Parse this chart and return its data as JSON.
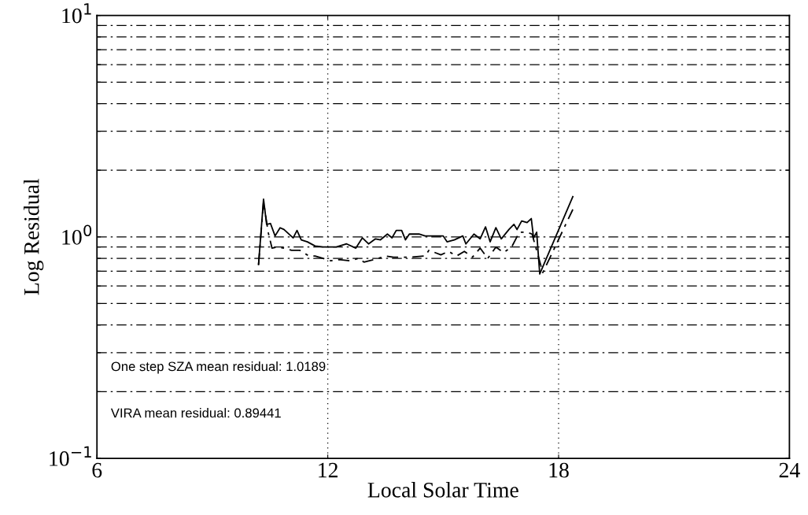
{
  "chart_data": {
    "type": "line",
    "xlabel": "Local Solar Time",
    "ylabel": "Log Residual",
    "log": "y",
    "xlim": [
      6,
      24
    ],
    "xticks": [
      6,
      12,
      18,
      24
    ],
    "ylim": [
      0.1,
      10
    ],
    "yticks": [
      {
        "value": 0.1,
        "label": "10$^{−1}$"
      },
      {
        "value": 0.2,
        "label": null
      },
      {
        "value": 0.3,
        "label": null
      },
      {
        "value": 0.4,
        "label": null
      },
      {
        "value": 0.5,
        "label": null
      },
      {
        "value": 0.6,
        "label": null
      },
      {
        "value": 0.7,
        "label": null
      },
      {
        "value": 0.8,
        "label": null
      },
      {
        "value": 0.9,
        "label": null
      },
      {
        "value": 1,
        "label": "10$^{0}$"
      },
      {
        "value": 2,
        "label": null
      },
      {
        "value": 3,
        "label": null
      },
      {
        "value": 4,
        "label": null
      },
      {
        "value": 5,
        "label": null
      },
      {
        "value": 6,
        "label": null
      },
      {
        "value": 7,
        "label": null
      },
      {
        "value": 8,
        "label": null
      },
      {
        "value": 9,
        "label": null
      },
      {
        "value": 10,
        "label": "10$^{1}$"
      }
    ],
    "grid": true,
    "marker": "none",
    "series": [
      {
        "color": "#000000",
        "line_style": "solid",
        "x": [
          10.2,
          10.33,
          10.41,
          10.51,
          10.63,
          10.76,
          10.86,
          11.1,
          11.2,
          11.31,
          11.47,
          11.67,
          11.88,
          12.22,
          12.49,
          12.73,
          12.9,
          13.06,
          13.24,
          13.37,
          13.55,
          13.67,
          13.78,
          13.92,
          14.02,
          14.12,
          14.37,
          14.53,
          15.0,
          15.1,
          15.29,
          15.51,
          15.59,
          15.8,
          15.96,
          16.1,
          16.22,
          16.37,
          16.51,
          16.71,
          16.84,
          16.92,
          17.04,
          17.18,
          17.29,
          17.35,
          17.43,
          17.51,
          18.37
        ],
        "values": [
          0.75,
          1.48,
          1.14,
          1.15,
          1.01,
          1.1,
          1.08,
          0.99,
          1.07,
          0.97,
          0.95,
          0.91,
          0.9,
          0.9,
          0.93,
          0.89,
          0.99,
          0.93,
          0.98,
          0.97,
          1.03,
          0.99,
          1.07,
          1.07,
          0.97,
          1.03,
          1.03,
          1.01,
          1.01,
          0.95,
          0.97,
          1.01,
          0.93,
          1.03,
          0.98,
          1.11,
          0.95,
          1.1,
          0.98,
          1.08,
          1.14,
          1.08,
          1.18,
          1.16,
          1.21,
          0.99,
          1.05,
          0.68,
          1.52
        ]
      },
      {
        "color": "#000000",
        "line_style": "dashed",
        "x": [
          10.2,
          10.33,
          10.45,
          10.55,
          10.69,
          10.86,
          11.06,
          11.27,
          11.51,
          11.67,
          11.88,
          12.08,
          12.29,
          12.59,
          12.8,
          12.94,
          13.2,
          13.51,
          13.71,
          14.12,
          14.53,
          14.63,
          14.94,
          15.14,
          15.35,
          15.55,
          15.76,
          15.96,
          16.16,
          16.37,
          16.57,
          16.78,
          16.98,
          17.18,
          17.31,
          17.59,
          18.37
        ],
        "values": [
          0.75,
          1.44,
          1.05,
          0.89,
          0.9,
          0.89,
          0.87,
          0.87,
          0.82,
          0.82,
          0.8,
          0.78,
          0.79,
          0.78,
          0.8,
          0.77,
          0.79,
          0.82,
          0.81,
          0.81,
          0.82,
          0.87,
          0.83,
          0.86,
          0.82,
          0.86,
          0.81,
          0.89,
          0.8,
          0.9,
          0.85,
          0.9,
          1.05,
          1.05,
          1.03,
          0.69,
          1.33
        ]
      }
    ],
    "annotations": [
      "One step SZA mean residual: 1.0189",
      "VIRA mean residual: 0.89441"
    ]
  }
}
